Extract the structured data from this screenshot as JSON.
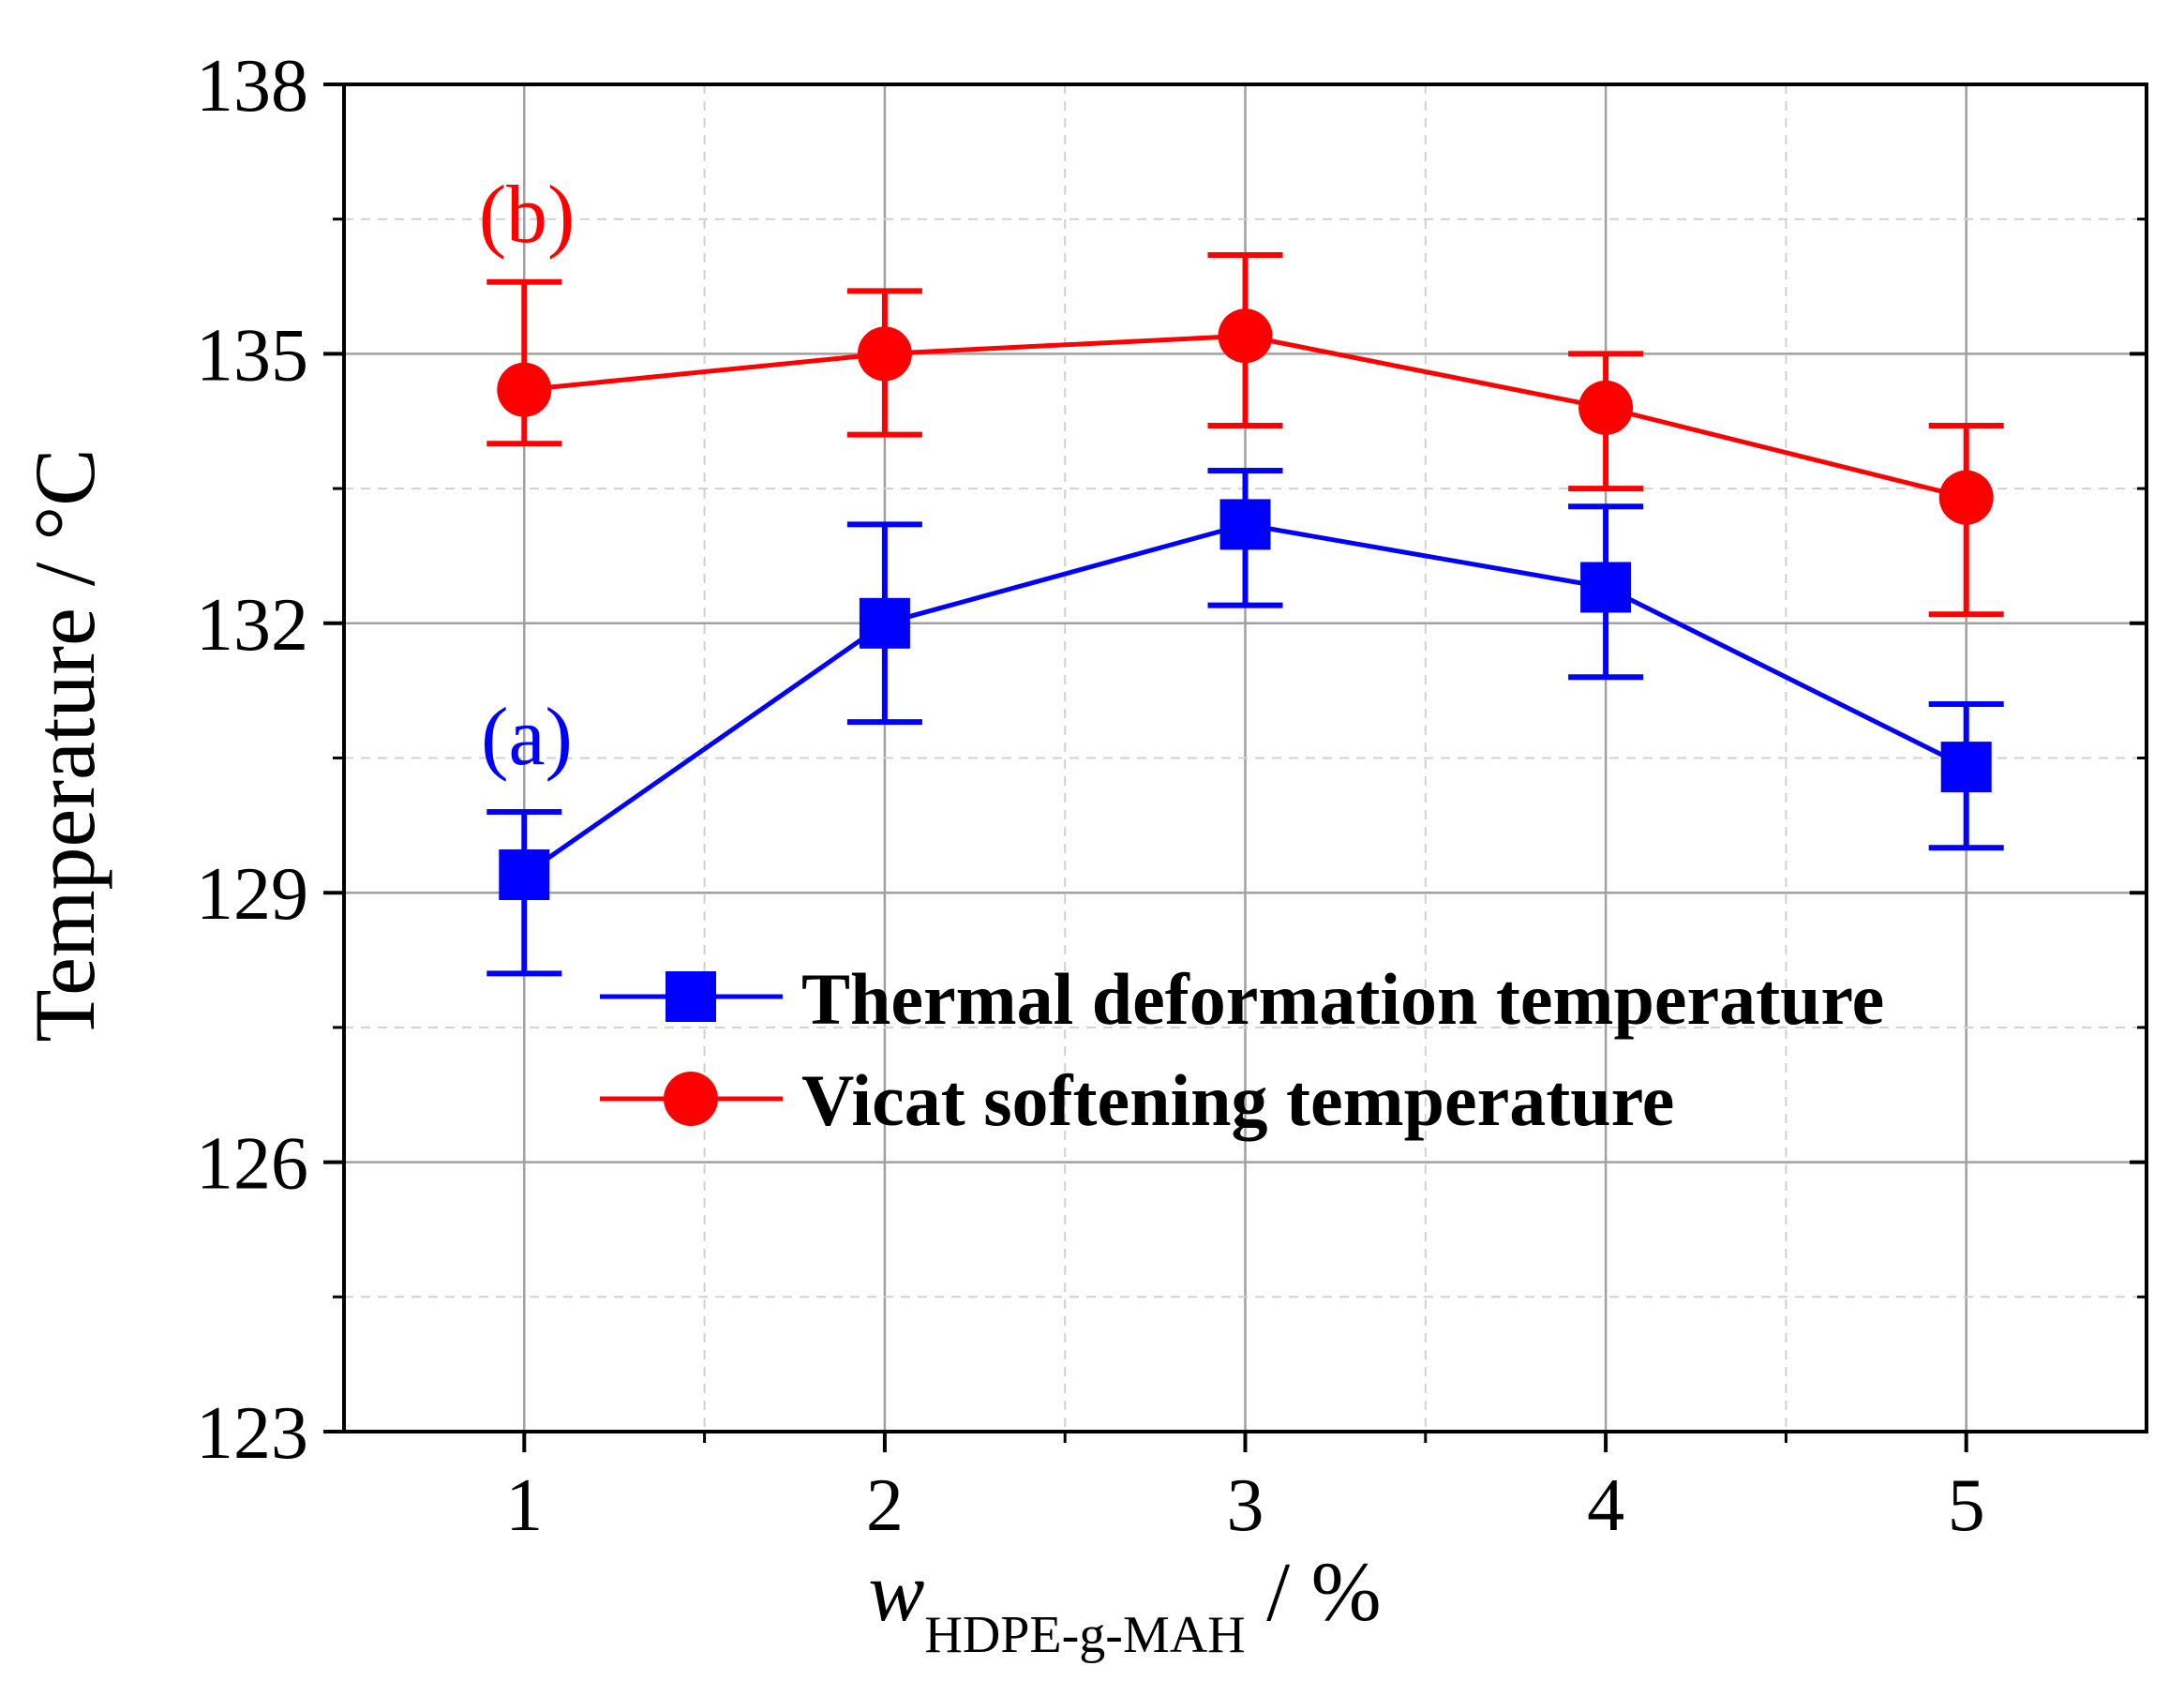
{
  "chart_data": {
    "type": "line",
    "title": "",
    "xlabel_main": "w",
    "xlabel_subscript": "HDPE-g-MAH",
    "xlabel_suffix": " / %",
    "ylabel": "Temperature / °C",
    "xlim": [
      0.5,
      5.5
    ],
    "ylim": [
      123,
      138
    ],
    "x_ticks": [
      1,
      2,
      3,
      4,
      5
    ],
    "x_tick_labels": [
      "1",
      "2",
      "3",
      "4",
      "5"
    ],
    "y_ticks": [
      123,
      126,
      129,
      132,
      135,
      138
    ],
    "y_tick_labels": [
      "123",
      "126",
      "129",
      "132",
      "135",
      "138"
    ],
    "grid": true,
    "legend_position": "center-right",
    "x": [
      1,
      2,
      3,
      4,
      5
    ],
    "series": [
      {
        "name": "Thermal deformation temperature",
        "color": "#0000ff",
        "marker": "square",
        "values": [
          129.2,
          132.0,
          133.1,
          132.4,
          130.4
        ],
        "error_upper": [
          129.9,
          133.1,
          133.7,
          133.3,
          131.1
        ],
        "error_lower": [
          128.1,
          130.9,
          132.2,
          131.4,
          129.5
        ],
        "annotation": "(a)"
      },
      {
        "name": "Vicat softening temperature",
        "color": "#ff0000",
        "marker": "circle",
        "values": [
          134.6,
          135.0,
          135.2,
          134.4,
          133.4
        ],
        "error_upper": [
          135.8,
          135.7,
          136.1,
          135.0,
          134.2
        ],
        "error_lower": [
          134.0,
          134.1,
          134.2,
          133.5,
          132.1
        ],
        "annotation": "(b)"
      }
    ]
  }
}
